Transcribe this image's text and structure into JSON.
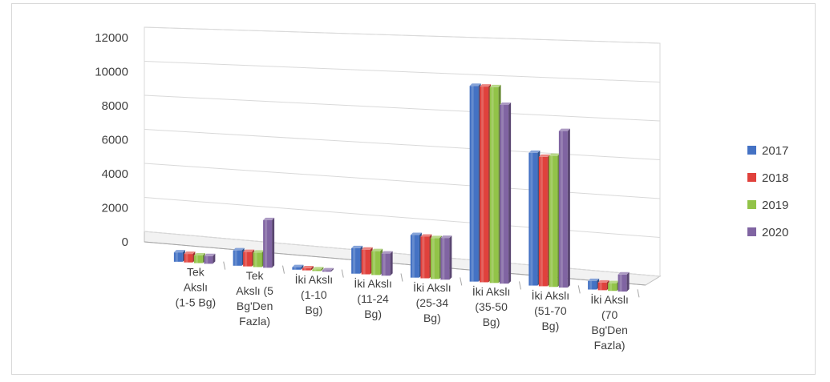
{
  "chart_data": {
    "type": "bar",
    "title": "",
    "xlabel": "",
    "ylabel": "",
    "ylim": [
      0,
      12000
    ],
    "yticks": [
      "0",
      "2000",
      "4000",
      "6000",
      "8000",
      "10000",
      "12000"
    ],
    "grid": true,
    "legend": "right",
    "categories": [
      [
        "Tek",
        "Akslı",
        "(1-5 Bg)"
      ],
      [
        "Tek",
        "Akslı (5",
        "Bg'Den",
        "Fazla)"
      ],
      [
        "İki Akslı",
        "(1-10",
        "Bg)"
      ],
      [
        "İki Akslı",
        "(11-24",
        "Bg)"
      ],
      [
        "İki Akslı",
        "(25-34",
        "Bg)"
      ],
      [
        "İki Akslı",
        "(35-50",
        "Bg)"
      ],
      [
        "İki Akslı",
        "(51-70",
        "Bg)"
      ],
      [
        "İki Akslı",
        "(70",
        "Bg'Den",
        "Fazla)"
      ]
    ],
    "series": [
      {
        "name": "2017",
        "color": "#4472c4",
        "values": [
          550,
          900,
          150,
          1500,
          2500,
          11500,
          7800,
          500
        ]
      },
      {
        "name": "2018",
        "color": "#e0413c",
        "values": [
          500,
          850,
          120,
          1450,
          2450,
          11500,
          7600,
          450
        ]
      },
      {
        "name": "2019",
        "color": "#92c348",
        "values": [
          450,
          850,
          100,
          1400,
          2400,
          11500,
          7700,
          450
        ]
      },
      {
        "name": "2020",
        "color": "#8064a2",
        "values": [
          450,
          2800,
          80,
          1300,
          2450,
          10500,
          9200,
          1000
        ]
      }
    ]
  }
}
